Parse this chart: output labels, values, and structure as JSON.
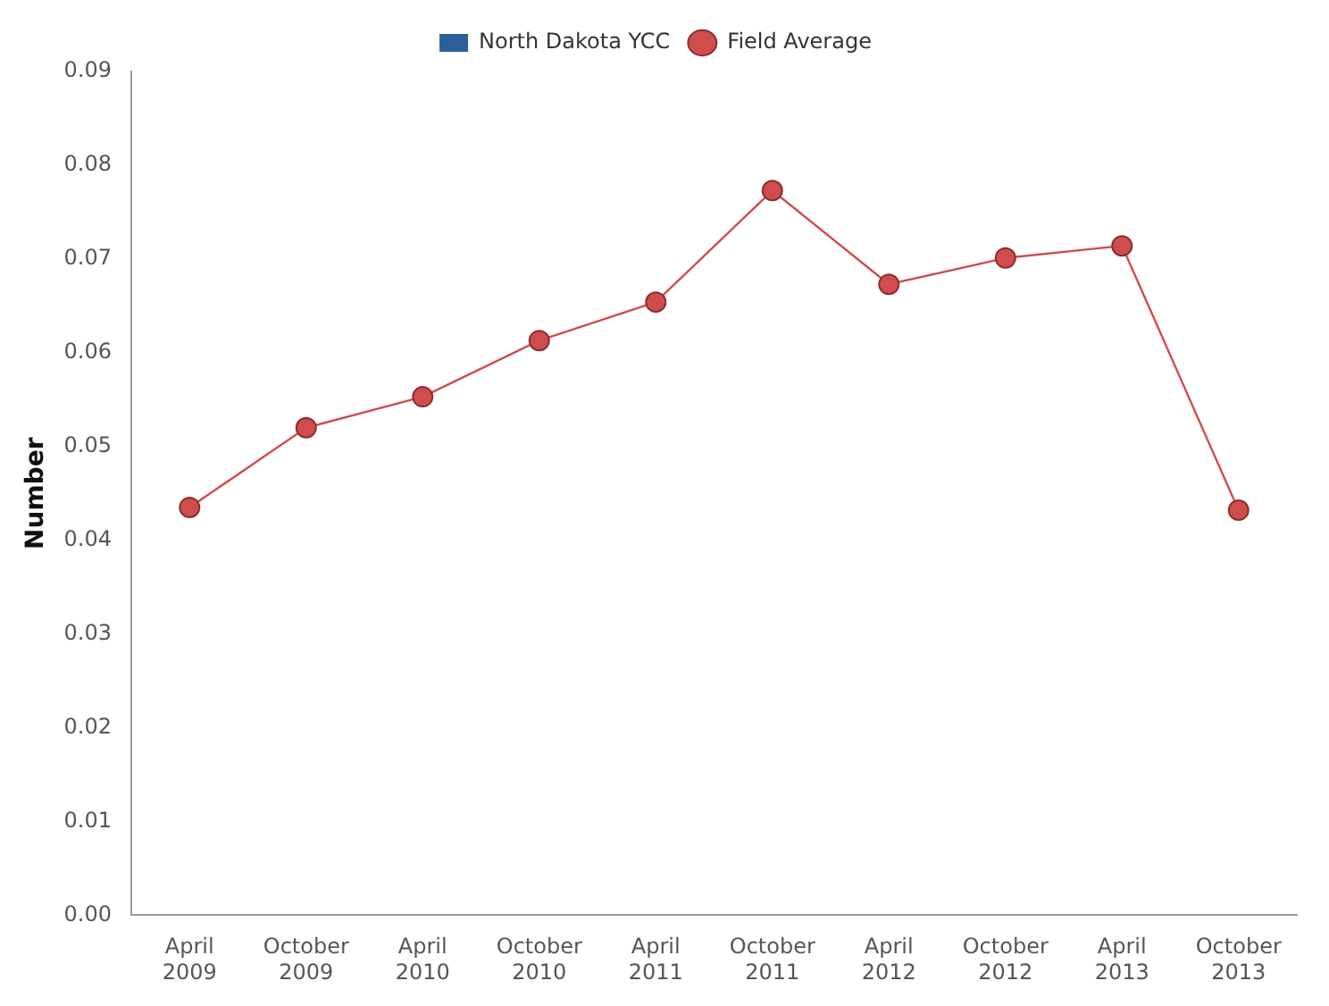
{
  "chart_data": {
    "type": "line",
    "ylabel": "Number",
    "categories": [
      "April 2009",
      "October 2009",
      "April 2010",
      "October 2010",
      "April 2011",
      "October 2011",
      "April 2012",
      "October 2012",
      "April 2013",
      "October 2013"
    ],
    "series": [
      {
        "name": "North Dakota YCC",
        "type": "bar",
        "color": "#2f5f98",
        "values": [
          null,
          null,
          null,
          null,
          null,
          null,
          null,
          null,
          null,
          null
        ]
      },
      {
        "name": "Field Average",
        "color": "#cf4d4d",
        "values": [
          0.0435,
          0.052,
          0.0553,
          0.0613,
          0.0654,
          0.0773,
          0.0673,
          0.0701,
          0.0714,
          0.0432
        ]
      }
    ],
    "ylim": [
      0,
      0.09
    ],
    "yticks": [
      {
        "value": 0,
        "label": "0.00"
      },
      {
        "value": 0.01,
        "label": "0.01"
      },
      {
        "value": 0.02,
        "label": "0.02"
      },
      {
        "value": 0.03,
        "label": "0.03"
      },
      {
        "value": 0.04,
        "label": "0.04"
      },
      {
        "value": 0.05,
        "label": "0.05"
      },
      {
        "value": 0.06,
        "label": "0.06"
      },
      {
        "value": 0.07,
        "label": "0.07"
      },
      {
        "value": 0.08,
        "label": "0.08"
      },
      {
        "value": 0.09,
        "label": "0.09"
      }
    ],
    "grid": false,
    "legend": "top",
    "marker": "circle",
    "line_style": "solid"
  }
}
